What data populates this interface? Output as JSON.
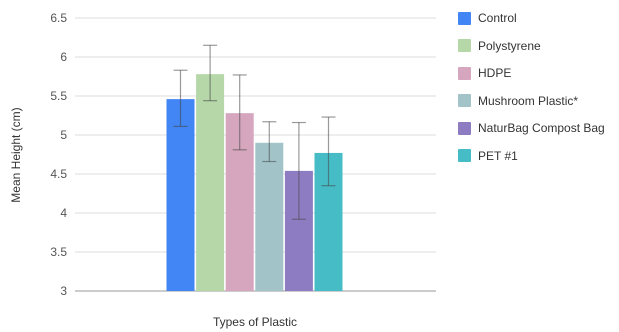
{
  "chart_data": {
    "type": "bar",
    "title": "",
    "xlabel": "Types of Plastic",
    "ylabel": "Mean Height (cm)",
    "ylim": [
      3,
      6.5
    ],
    "y_ticks": [
      "3",
      "3.5",
      "4",
      "4.5",
      "5",
      "5.5",
      "6",
      "6.5"
    ],
    "grid": true,
    "legend_position": "right",
    "series": [
      {
        "name": "Control",
        "value": 5.46,
        "error_low": 5.11,
        "error_high": 5.83,
        "color": "#4285f4"
      },
      {
        "name": "Polystyrene",
        "value": 5.78,
        "error_low": 5.44,
        "error_high": 6.15,
        "color": "#b6d7a8"
      },
      {
        "name": "HDPE",
        "value": 5.28,
        "error_low": 4.81,
        "error_high": 5.77,
        "color": "#d5a6bd"
      },
      {
        "name": "Mushroom Plastic*",
        "value": 4.9,
        "error_low": 4.66,
        "error_high": 5.17,
        "color": "#a2c4c9"
      },
      {
        "name": "NaturBag Compost Bag",
        "value": 4.54,
        "error_low": 3.92,
        "error_high": 5.16,
        "color": "#8e7cc3"
      },
      {
        "name": "PET #1",
        "value": 4.77,
        "error_low": 4.35,
        "error_high": 5.23,
        "color": "#46bdc6"
      }
    ]
  }
}
